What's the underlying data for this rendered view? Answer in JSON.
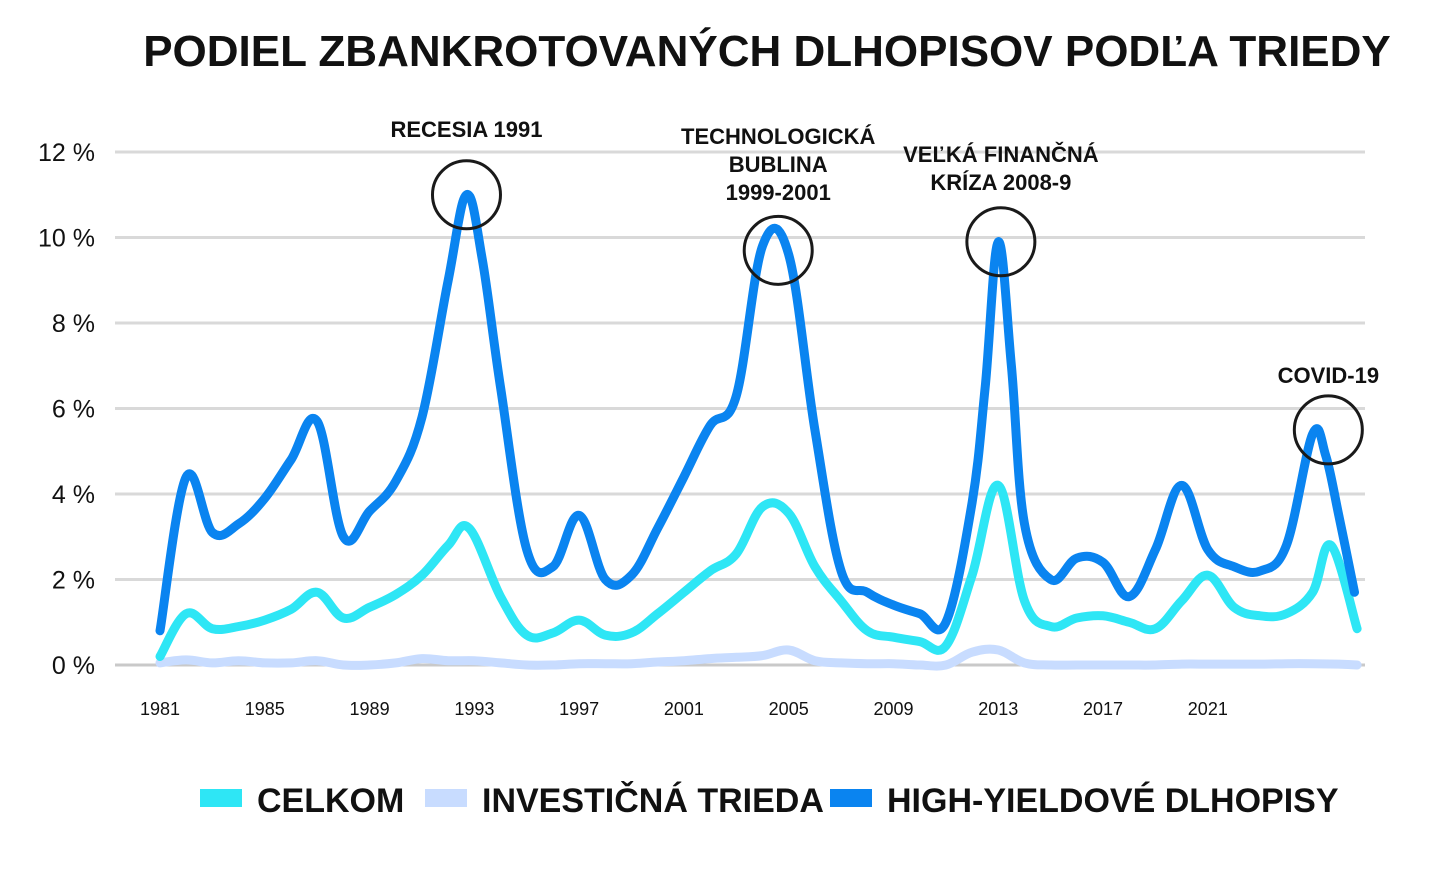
{
  "chart_data": {
    "type": "line",
    "title": "PODIEL ZBANKROTOVANÝCH DLHOPISOV PODĽA TRIEDY",
    "xlabel": "",
    "ylabel": "",
    "ylim": [
      0,
      12
    ],
    "xlim": [
      1981,
      2027
    ],
    "y_ticks": [
      0,
      2,
      4,
      6,
      8,
      10,
      12
    ],
    "y_tick_labels": [
      "0 %",
      "2 %",
      "4 %",
      "6 %",
      "8 %",
      "10 %",
      "12 %"
    ],
    "x_ticks": [
      1981,
      1985,
      1989,
      1993,
      1997,
      2001,
      2005,
      2009,
      2013,
      2017,
      2021
    ],
    "x_tick_labels": [
      "1981",
      "1985",
      "1989",
      "1993",
      "1997",
      "2001",
      "2005",
      "2009",
      "2013",
      "2017",
      "2021"
    ],
    "grid": "horizontal",
    "legend_position": "bottom",
    "series": [
      {
        "name": "HIGH-YIELDOVÉ DLHOPISY",
        "color": "#0a84f0",
        "x": [
          1981,
          1982,
          1983,
          1984,
          1985,
          1986,
          1987,
          1988,
          1989,
          1990,
          1991,
          1992,
          1992.7,
          1993.3,
          1994,
          1995,
          1996,
          1997,
          1998,
          1999,
          2000,
          2001,
          2002,
          2003,
          2004,
          2005,
          2006,
          2007,
          2008,
          2009,
          2010,
          2011,
          2012,
          2012.5,
          2013,
          2013.5,
          2014,
          2015,
          2016,
          2017,
          2018,
          2019,
          2020,
          2021,
          2022,
          2023,
          2024,
          2025,
          2025.5,
          2026,
          2026.6
        ],
        "values": [
          0.8,
          4.4,
          3.1,
          3.3,
          3.9,
          4.8,
          5.7,
          3.0,
          3.6,
          4.3,
          5.8,
          9.0,
          11.0,
          9.5,
          6.5,
          2.7,
          2.3,
          3.5,
          2.0,
          2.1,
          3.2,
          4.4,
          5.6,
          6.3,
          9.8,
          9.6,
          5.5,
          2.2,
          1.7,
          1.4,
          1.2,
          1.0,
          3.8,
          6.5,
          9.9,
          7.0,
          3.3,
          2.0,
          2.5,
          2.4,
          1.6,
          2.7,
          4.2,
          2.7,
          2.3,
          2.2,
          2.8,
          5.4,
          4.9,
          3.5,
          1.7
        ]
      },
      {
        "name": "CELKOM",
        "color": "#2ee6f5",
        "x": [
          1981,
          1982,
          1983,
          1984,
          1985,
          1986,
          1987,
          1988,
          1989,
          1990,
          1991,
          1992,
          1992.8,
          1994,
          1995,
          1996,
          1997,
          1998,
          1999,
          2000,
          2001,
          2002,
          2003,
          2004,
          2005,
          2006,
          2007,
          2008,
          2009,
          2010,
          2011,
          2012,
          2013,
          2014,
          2015,
          2016,
          2017,
          2018,
          2019,
          2020,
          2021,
          2022,
          2023,
          2024,
          2025,
          2025.7,
          2026.7
        ],
        "values": [
          0.2,
          1.2,
          0.85,
          0.9,
          1.05,
          1.3,
          1.7,
          1.1,
          1.35,
          1.65,
          2.1,
          2.8,
          3.2,
          1.6,
          0.7,
          0.75,
          1.05,
          0.7,
          0.75,
          1.2,
          1.7,
          2.2,
          2.6,
          3.7,
          3.55,
          2.3,
          1.5,
          0.8,
          0.65,
          0.55,
          0.45,
          2.1,
          4.2,
          1.5,
          0.9,
          1.1,
          1.15,
          1.0,
          0.85,
          1.5,
          2.1,
          1.35,
          1.15,
          1.2,
          1.7,
          2.8,
          0.85
        ]
      },
      {
        "name": "INVESTIČNÁ TRIEDA",
        "color": "#c8dcff",
        "x": [
          1981,
          1982,
          1983,
          1984,
          1985,
          1986,
          1987,
          1988,
          1989,
          1990,
          1991,
          1992,
          1993,
          1994,
          1995,
          1996,
          1997,
          1998,
          1999,
          2000,
          2001,
          2002,
          2003,
          2004,
          2005,
          2006,
          2007,
          2008,
          2009,
          2010,
          2011,
          2012,
          2013,
          2014,
          2015,
          2016,
          2017,
          2018,
          2019,
          2020,
          2021,
          2022,
          2023,
          2024,
          2025,
          2026,
          2026.7
        ],
        "values": [
          0.05,
          0.12,
          0.05,
          0.1,
          0.05,
          0.05,
          0.1,
          0.0,
          0.0,
          0.05,
          0.15,
          0.1,
          0.1,
          0.05,
          0.0,
          0.0,
          0.03,
          0.03,
          0.03,
          0.07,
          0.1,
          0.15,
          0.18,
          0.22,
          0.35,
          0.1,
          0.05,
          0.03,
          0.03,
          0.0,
          0.0,
          0.3,
          0.35,
          0.05,
          0.0,
          0.0,
          0.0,
          0.0,
          0.0,
          0.02,
          0.02,
          0.02,
          0.02,
          0.03,
          0.03,
          0.02,
          0.0
        ]
      }
    ],
    "legend": [
      {
        "label": "CELKOM",
        "color": "#2ee6f5"
      },
      {
        "label": "INVESTIČNÁ TRIEDA",
        "color": "#c8dcff"
      },
      {
        "label": "HIGH-YIELDOVÉ DLHOPISY",
        "color": "#0a84f0"
      }
    ],
    "annotations": [
      {
        "lines": [
          "RECESIA 1991"
        ],
        "x": 1992.7,
        "y": 11.0
      },
      {
        "lines": [
          "TECHNOLOGICKÁ",
          "BUBLINA",
          "1999-2001"
        ],
        "x": 2004.6,
        "y": 9.7
      },
      {
        "lines": [
          "VEĽKÁ FINANČNÁ",
          "KRÍZA 2008-9"
        ],
        "x": 2013.1,
        "y": 9.9
      },
      {
        "lines": [
          "COVID-19"
        ],
        "x": 2025.6,
        "y": 5.5
      }
    ]
  }
}
